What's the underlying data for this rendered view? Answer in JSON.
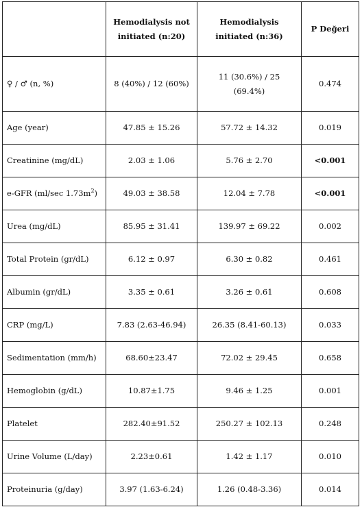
{
  "header": {
    "col0": "",
    "col1_line1": "Hemodialysis not",
    "col1_line2": "initiated (n:20)",
    "col2_line1": "Hemodialysis",
    "col2_line2": "initiated (n:36)",
    "col3": "P Değeri"
  },
  "rows": [
    {
      "label": "♀ / ♂ (n, %)",
      "a": "8 (40%) / 12 (60%)",
      "b_line1": "11 (30.6%) / 25",
      "b_line2": "(69.4%)",
      "p": "0.474"
    },
    {
      "label": "Age (year)",
      "a": "47.85 ± 15.26",
      "b": "57.72 ± 14.32",
      "p": "0.019"
    },
    {
      "label": "Creatinine (mg/dL)",
      "a": "2.03 ± 1.06",
      "b": "5.76 ± 2.70",
      "p": "<0.001"
    },
    {
      "label_pre": "e-GFR (ml/sec 1.73m",
      "label_sup": "2",
      "label_post": ")",
      "a": "49.03 ± 38.58",
      "b": "12.04 ± 7.78",
      "p": "<0.001"
    },
    {
      "label": "Urea (mg/dL)",
      "a": "85.95 ± 31.41",
      "b": "139.97 ± 69.22",
      "p": "0.002"
    },
    {
      "label": "Total Protein (gr/dL)",
      "a": "6.12 ± 0.97",
      "b": "6.30 ± 0.82",
      "p": "0.461"
    },
    {
      "label": "Albumin (gr/dL)",
      "a": "3.35 ± 0.61",
      "b": "3.26 ± 0.61",
      "p": "0.608"
    },
    {
      "label": "CRP (mg/L)",
      "a": "7.83 (2.63-46.94)",
      "b": "26.35 (8.41-60.13)",
      "p": "0.033"
    },
    {
      "label": "Sedimentation (mm/h)",
      "a": "68.60±23.47",
      "b": "72.02 ± 29.45",
      "p": "0.658"
    },
    {
      "label": "Hemoglobin (g/dL)",
      "a": "10.87±1.75",
      "b": "9.46 ± 1.25",
      "p": "0.001"
    },
    {
      "label": "Platelet",
      "a": "282.40±91.52",
      "b": "250.27 ± 102.13",
      "p": "0.248"
    },
    {
      "label": "Urine Volume (L/day)",
      "a": "2.23±0.61",
      "b": "1.42 ± 1.17",
      "p": "0.010"
    },
    {
      "label": "Proteinuria (g/day)",
      "a": "3.97 (1.63-6.24)",
      "b": "1.26 (0.48-3.36)",
      "p": "0.014"
    }
  ]
}
